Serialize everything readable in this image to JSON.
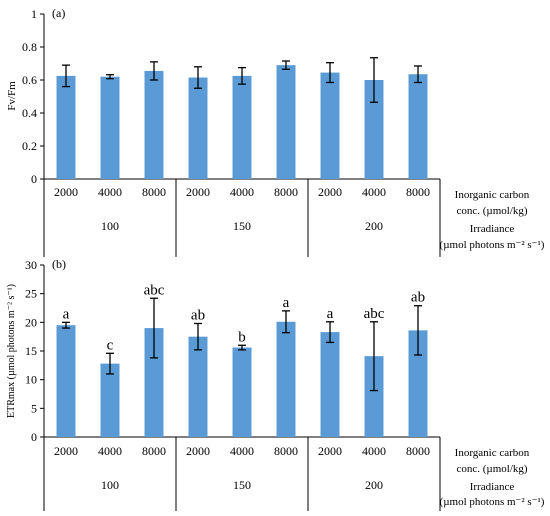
{
  "bar_color": "#5B9BD5",
  "axis_color": "#000000",
  "chart_data": [
    {
      "type": "bar",
      "panel_label": "(a)",
      "ylabel": "Fv/Fm",
      "ylim": [
        0,
        1
      ],
      "yticks": [
        0,
        0.2,
        0.4,
        0.6,
        0.8,
        1
      ],
      "ytick_labels": [
        "0",
        "0.2",
        "0.4",
        "0.6",
        "0.8",
        "1"
      ],
      "categories": [
        "2000",
        "4000",
        "8000",
        "2000",
        "4000",
        "8000",
        "2000",
        "4000",
        "8000"
      ],
      "groups": [
        "100",
        "150",
        "200"
      ],
      "row_label_1": [
        "Inorganic carbon",
        "conc. (µmol/kg)"
      ],
      "row_label_2": [
        "Irradiance",
        "(µmol photons m⁻² s⁻¹)"
      ],
      "values": [
        0.625,
        0.62,
        0.655,
        0.615,
        0.625,
        0.69,
        0.645,
        0.6,
        0.635
      ],
      "errors": [
        0.065,
        0.012,
        0.055,
        0.065,
        0.05,
        0.025,
        0.06,
        0.135,
        0.05
      ],
      "annotations": [
        "",
        "",
        "",
        "",
        "",
        "",
        "",
        "",
        ""
      ]
    },
    {
      "type": "bar",
      "panel_label": "(b)",
      "ylabel": "ETRmax (µmol photons m⁻² s⁻¹)",
      "ylim": [
        0,
        30
      ],
      "yticks": [
        0,
        5,
        10,
        15,
        20,
        25,
        30
      ],
      "ytick_labels": [
        "0",
        "5",
        "10",
        "15",
        "20",
        "25",
        "30"
      ],
      "categories": [
        "2000",
        "4000",
        "8000",
        "2000",
        "4000",
        "8000",
        "2000",
        "4000",
        "8000"
      ],
      "groups": [
        "100",
        "150",
        "200"
      ],
      "row_label_1": [
        "Inorganic carbon",
        "conc. (µmol/kg)"
      ],
      "row_label_2": [
        "Irradiance",
        "(µmol photons m⁻² s⁻¹)"
      ],
      "values": [
        19.5,
        12.8,
        19.0,
        17.5,
        15.6,
        20.1,
        18.3,
        14.1,
        18.6
      ],
      "errors": [
        0.5,
        1.8,
        5.2,
        2.3,
        0.4,
        1.9,
        1.8,
        6.0,
        4.3
      ],
      "annotations": [
        "a",
        "c",
        "abc",
        "ab",
        "b",
        "a",
        "a",
        "abc",
        "ab"
      ]
    }
  ]
}
